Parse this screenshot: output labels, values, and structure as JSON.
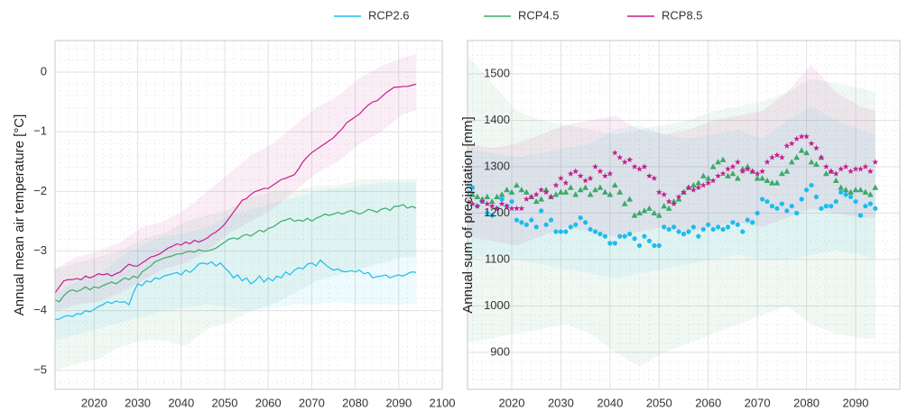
{
  "legend_position": "top",
  "chart_data": [
    {
      "type": "line",
      "ylabel": "Annual mean air temperature [°C]",
      "xlim": [
        2011,
        2100
      ],
      "xticks": [
        2020,
        2030,
        2040,
        2050,
        2060,
        2070,
        2080,
        2090,
        2100
      ],
      "ylim": [
        -5.32,
        0.53
      ],
      "yticks": [
        {
          "value": -5,
          "label": "−5"
        },
        {
          "value": -4,
          "label": "−4"
        },
        {
          "value": -3,
          "label": "−3"
        },
        {
          "value": -2,
          "label": "−2"
        },
        {
          "value": -1,
          "label": "−1"
        },
        0
      ],
      "grid": true,
      "minor_grid": true,
      "x": [
        2011,
        2012,
        2013,
        2014,
        2015,
        2016,
        2017,
        2018,
        2019,
        2020,
        2021,
        2022,
        2023,
        2024,
        2025,
        2026,
        2027,
        2028,
        2029,
        2030,
        2031,
        2032,
        2033,
        2034,
        2035,
        2036,
        2037,
        2038,
        2039,
        2040,
        2041,
        2042,
        2043,
        2044,
        2045,
        2046,
        2047,
        2048,
        2049,
        2050,
        2051,
        2052,
        2053,
        2054,
        2055,
        2056,
        2057,
        2058,
        2059,
        2060,
        2061,
        2062,
        2063,
        2064,
        2065,
        2066,
        2067,
        2068,
        2069,
        2070,
        2071,
        2072,
        2073,
        2074,
        2075,
        2076,
        2077,
        2078,
        2079,
        2080,
        2081,
        2082,
        2083,
        2084,
        2085,
        2086,
        2087,
        2088,
        2089,
        2090,
        2091,
        2092,
        2093,
        2094
      ],
      "band_x": [
        2011,
        2016,
        2021,
        2026,
        2031,
        2036,
        2041,
        2046,
        2051,
        2056,
        2061,
        2066,
        2071,
        2076,
        2081,
        2086,
        2091,
        2094
      ],
      "series": [
        {
          "name": "RCP2.6",
          "color": "#1cbcee",
          "values": [
            -4.15,
            -4.14,
            -4.1,
            -4.08,
            -4.1,
            -4.05,
            -4.06,
            -4.0,
            -4.02,
            -3.98,
            -3.93,
            -3.9,
            -3.85,
            -3.88,
            -3.84,
            -3.86,
            -3.85,
            -3.9,
            -3.7,
            -3.55,
            -3.58,
            -3.5,
            -3.52,
            -3.45,
            -3.47,
            -3.42,
            -3.4,
            -3.38,
            -3.36,
            -3.4,
            -3.32,
            -3.36,
            -3.3,
            -3.22,
            -3.2,
            -3.22,
            -3.18,
            -3.25,
            -3.2,
            -3.28,
            -3.35,
            -3.45,
            -3.4,
            -3.5,
            -3.45,
            -3.55,
            -3.5,
            -3.42,
            -3.52,
            -3.45,
            -3.5,
            -3.42,
            -3.45,
            -3.35,
            -3.4,
            -3.32,
            -3.28,
            -3.3,
            -3.22,
            -3.2,
            -3.25,
            -3.15,
            -3.22,
            -3.28,
            -3.32,
            -3.3,
            -3.34,
            -3.35,
            -3.33,
            -3.35,
            -3.32,
            -3.38,
            -3.36,
            -3.45,
            -3.43,
            -3.42,
            -3.4,
            -3.45,
            -3.42,
            -3.4,
            -3.42,
            -3.38,
            -3.35,
            -3.36
          ],
          "band": {
            "lower": [
              -4.5,
              -4.4,
              -4.3,
              -4.2,
              -4.1,
              -4.0,
              -3.95,
              -3.9,
              -3.95,
              -4.0,
              -3.95,
              -3.9,
              -3.9,
              -3.85,
              -3.9,
              -3.9,
              -3.9,
              -3.9
            ],
            "upper": [
              -3.7,
              -3.5,
              -3.4,
              -3.1,
              -2.9,
              -2.75,
              -2.7,
              -2.6,
              -2.4,
              -2.3,
              -2.2,
              -2.1,
              -2.0,
              -1.95,
              -1.9,
              -1.85,
              -1.85,
              -1.85
            ]
          }
        },
        {
          "name": "RCP4.5",
          "color": "#3aaa6a",
          "values": [
            -3.82,
            -3.85,
            -3.75,
            -3.68,
            -3.65,
            -3.68,
            -3.65,
            -3.6,
            -3.65,
            -3.6,
            -3.62,
            -3.58,
            -3.55,
            -3.52,
            -3.55,
            -3.5,
            -3.45,
            -3.48,
            -3.42,
            -3.45,
            -3.35,
            -3.3,
            -3.25,
            -3.18,
            -3.15,
            -3.12,
            -3.1,
            -3.08,
            -3.05,
            -3.05,
            -3.02,
            -3.0,
            -3.02,
            -2.98,
            -3.0,
            -3.0,
            -2.98,
            -2.95,
            -2.9,
            -2.85,
            -2.8,
            -2.78,
            -2.8,
            -2.75,
            -2.72,
            -2.75,
            -2.7,
            -2.65,
            -2.68,
            -2.62,
            -2.6,
            -2.55,
            -2.5,
            -2.48,
            -2.45,
            -2.5,
            -2.48,
            -2.5,
            -2.45,
            -2.5,
            -2.45,
            -2.42,
            -2.38,
            -2.4,
            -2.38,
            -2.35,
            -2.38,
            -2.35,
            -2.32,
            -2.35,
            -2.38,
            -2.35,
            -2.3,
            -2.32,
            -2.35,
            -2.3,
            -2.28,
            -2.32,
            -2.25,
            -2.25,
            -2.22,
            -2.28,
            -2.25,
            -2.28
          ],
          "band": {
            "lower": [
              -5.0,
              -4.9,
              -4.8,
              -4.6,
              -4.5,
              -4.5,
              -4.6,
              -4.3,
              -4.2,
              -4.0,
              -3.9,
              -3.7,
              -3.5,
              -3.4,
              -3.3,
              -3.2,
              -3.1,
              -3.1
            ],
            "upper": [
              -3.3,
              -3.2,
              -3.1,
              -3.0,
              -2.8,
              -2.7,
              -2.5,
              -2.4,
              -2.3,
              -2.1,
              -2.0,
              -2.0,
              -1.9,
              -1.9,
              -1.8,
              -1.8,
              -1.8,
              -1.8
            ]
          }
        },
        {
          "name": "RCP8.5",
          "color": "#c41f8a",
          "values": [
            -3.7,
            -3.6,
            -3.5,
            -3.48,
            -3.48,
            -3.46,
            -3.48,
            -3.42,
            -3.45,
            -3.42,
            -3.38,
            -3.4,
            -3.38,
            -3.42,
            -3.38,
            -3.35,
            -3.28,
            -3.22,
            -3.25,
            -3.25,
            -3.2,
            -3.15,
            -3.1,
            -3.08,
            -3.05,
            -3.0,
            -2.95,
            -2.92,
            -2.88,
            -2.9,
            -2.85,
            -2.88,
            -2.82,
            -2.85,
            -2.82,
            -2.78,
            -2.72,
            -2.68,
            -2.62,
            -2.55,
            -2.45,
            -2.35,
            -2.25,
            -2.15,
            -2.12,
            -2.05,
            -2.0,
            -1.98,
            -1.95,
            -1.95,
            -1.9,
            -1.85,
            -1.8,
            -1.78,
            -1.75,
            -1.72,
            -1.62,
            -1.5,
            -1.42,
            -1.35,
            -1.3,
            -1.25,
            -1.2,
            -1.15,
            -1.1,
            -1.02,
            -0.95,
            -0.85,
            -0.8,
            -0.75,
            -0.7,
            -0.62,
            -0.55,
            -0.5,
            -0.48,
            -0.42,
            -0.35,
            -0.3,
            -0.25,
            -0.25,
            -0.24,
            -0.24,
            -0.22,
            -0.2
          ],
          "band": {
            "lower": [
              -4.0,
              -3.9,
              -3.85,
              -3.7,
              -3.5,
              -3.3,
              -3.2,
              -3.0,
              -2.7,
              -2.5,
              -2.3,
              -2.0,
              -1.7,
              -1.5,
              -1.2,
              -1.0,
              -0.7,
              -0.65
            ],
            "upper": [
              -3.3,
              -3.1,
              -3.0,
              -2.85,
              -2.6,
              -2.5,
              -2.3,
              -2.0,
              -1.7,
              -1.4,
              -1.2,
              -0.9,
              -0.6,
              -0.4,
              -0.1,
              0.1,
              0.25,
              0.3
            ]
          }
        }
      ]
    },
    {
      "type": "scatter",
      "ylabel": "Annual sum of precipitation [mm]",
      "xlim": [
        2011,
        2099
      ],
      "xticks": [
        2020,
        2030,
        2040,
        2050,
        2060,
        2070,
        2080,
        2090
      ],
      "ylim": [
        820,
        1572
      ],
      "yticks": [
        900,
        1000,
        1100,
        1200,
        1300,
        1400,
        1500
      ],
      "grid": true,
      "minor_grid": true,
      "x": [
        2011,
        2012,
        2013,
        2014,
        2015,
        2016,
        2017,
        2018,
        2019,
        2020,
        2021,
        2022,
        2023,
        2024,
        2025,
        2026,
        2027,
        2028,
        2029,
        2030,
        2031,
        2032,
        2033,
        2034,
        2035,
        2036,
        2037,
        2038,
        2039,
        2040,
        2041,
        2042,
        2043,
        2044,
        2045,
        2046,
        2047,
        2048,
        2049,
        2050,
        2051,
        2052,
        2053,
        2054,
        2055,
        2056,
        2057,
        2058,
        2059,
        2060,
        2061,
        2062,
        2063,
        2064,
        2065,
        2066,
        2067,
        2068,
        2069,
        2070,
        2071,
        2072,
        2073,
        2074,
        2075,
        2076,
        2077,
        2078,
        2079,
        2080,
        2081,
        2082,
        2083,
        2084,
        2085,
        2086,
        2087,
        2088,
        2089,
        2090,
        2091,
        2092,
        2093,
        2094
      ],
      "band_x": [
        2011,
        2016,
        2021,
        2026,
        2031,
        2036,
        2041,
        2046,
        2051,
        2056,
        2061,
        2066,
        2071,
        2076,
        2081,
        2086,
        2091,
        2094
      ],
      "series": [
        {
          "color": "#1cbcee",
          "marker": "circle",
          "values": [
            1245,
            1255,
            1215,
            1225,
            1200,
            1195,
            1210,
            1230,
            1215,
            1225,
            1185,
            1180,
            1175,
            1185,
            1170,
            1205,
            1175,
            1185,
            1160,
            1160,
            1160,
            1170,
            1175,
            1190,
            1180,
            1165,
            1160,
            1155,
            1150,
            1135,
            1135,
            1150,
            1150,
            1155,
            1145,
            1130,
            1150,
            1140,
            1130,
            1130,
            1170,
            1165,
            1170,
            1160,
            1155,
            1160,
            1170,
            1150,
            1165,
            1175,
            1165,
            1170,
            1165,
            1170,
            1180,
            1175,
            1160,
            1185,
            1180,
            1200,
            1230,
            1225,
            1215,
            1210,
            1220,
            1205,
            1215,
            1200,
            1230,
            1250,
            1260,
            1235,
            1210,
            1215,
            1215,
            1225,
            1245,
            1240,
            1235,
            1225,
            1195,
            1215,
            1220,
            1210
          ],
          "band": {
            "lower": [
              1100,
              1110,
              1100,
              1090,
              1080,
              1070,
              1060,
              1070,
              1080,
              1090,
              1100,
              1110,
              1100,
              1100,
              1110,
              1120,
              1110,
              1100
            ],
            "upper": [
              1340,
              1330,
              1320,
              1330,
              1340,
              1350,
              1380,
              1390,
              1370,
              1360,
              1370,
              1380,
              1360,
              1400,
              1430,
              1400,
              1380,
              1370
            ]
          }
        },
        {
          "color": "#3aaa6a",
          "marker": "triangle",
          "values": [
            1225,
            1240,
            1235,
            1230,
            1235,
            1225,
            1235,
            1240,
            1250,
            1245,
            1260,
            1250,
            1245,
            1235,
            1225,
            1230,
            1250,
            1235,
            1240,
            1245,
            1245,
            1255,
            1240,
            1250,
            1255,
            1240,
            1250,
            1255,
            1245,
            1240,
            1260,
            1245,
            1220,
            1230,
            1195,
            1200,
            1205,
            1210,
            1200,
            1195,
            1215,
            1210,
            1225,
            1230,
            1245,
            1255,
            1260,
            1265,
            1280,
            1275,
            1300,
            1310,
            1315,
            1280,
            1285,
            1275,
            1295,
            1300,
            1290,
            1275,
            1275,
            1270,
            1265,
            1265,
            1285,
            1290,
            1310,
            1320,
            1335,
            1330,
            1310,
            1305,
            1320,
            1285,
            1290,
            1270,
            1255,
            1250,
            1245,
            1250,
            1250,
            1245,
            1240,
            1255
          ],
          "band": {
            "lower": [
              920,
              930,
              940,
              950,
              960,
              940,
              900,
              870,
              900,
              920,
              940,
              960,
              980,
              1000,
              960,
              940,
              930,
              930
            ],
            "upper": [
              1540,
              1480,
              1420,
              1400,
              1390,
              1380,
              1370,
              1380,
              1390,
              1400,
              1420,
              1430,
              1440,
              1460,
              1490,
              1480,
              1470,
              1460
            ]
          }
        },
        {
          "color": "#c41f8a",
          "marker": "star",
          "values": [
            1225,
            1220,
            1215,
            1225,
            1220,
            1215,
            1210,
            1220,
            1215,
            1210,
            1210,
            1210,
            1230,
            1235,
            1240,
            1250,
            1245,
            1235,
            1260,
            1275,
            1265,
            1285,
            1290,
            1280,
            1270,
            1275,
            1300,
            1290,
            1280,
            1285,
            1330,
            1320,
            1310,
            1315,
            1300,
            1295,
            1300,
            1280,
            1275,
            1245,
            1240,
            1225,
            1220,
            1235,
            1245,
            1255,
            1250,
            1255,
            1260,
            1265,
            1270,
            1280,
            1285,
            1295,
            1300,
            1310,
            1290,
            1295,
            1290,
            1285,
            1290,
            1310,
            1320,
            1325,
            1320,
            1345,
            1350,
            1360,
            1365,
            1365,
            1350,
            1340,
            1320,
            1300,
            1290,
            1285,
            1295,
            1300,
            1290,
            1295,
            1295,
            1300,
            1290,
            1310
          ],
          "band": {
            "lower": [
              1150,
              1140,
              1130,
              1150,
              1170,
              1160,
              1150,
              1160,
              1170,
              1160,
              1170,
              1180,
              1170,
              1190,
              1210,
              1200,
              1190,
              1190
            ],
            "upper": [
              1350,
              1340,
              1350,
              1370,
              1390,
              1400,
              1410,
              1380,
              1370,
              1380,
              1400,
              1410,
              1420,
              1460,
              1520,
              1460,
              1430,
              1420
            ]
          }
        }
      ]
    }
  ]
}
